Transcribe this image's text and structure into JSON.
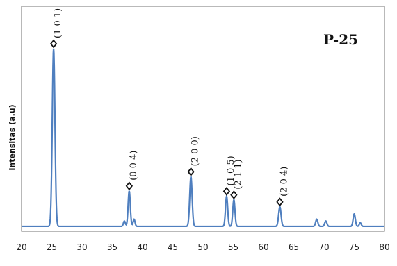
{
  "chart_data": {
    "type": "line",
    "title": "",
    "annotation": "P-25",
    "xlabel": "",
    "ylabel": "Intensitas (a.u)",
    "xlim": [
      20,
      80
    ],
    "ylim": [
      0,
      100
    ],
    "xticks": [
      20,
      25,
      30,
      35,
      40,
      45,
      50,
      55,
      60,
      65,
      70,
      75,
      80
    ],
    "tick_labels": [
      "20",
      "25",
      "30",
      "35",
      "40",
      "45",
      "50",
      "55",
      "60",
      "65",
      "70",
      "75",
      "80"
    ],
    "series_color": "#4f7fbf",
    "marker_symbol": "diamond",
    "peaks": [
      {
        "x": 25.3,
        "y": 100,
        "width": 0.22
      },
      {
        "x": 37.0,
        "y": 3,
        "width": 0.16
      },
      {
        "x": 37.8,
        "y": 20,
        "width": 0.18
      },
      {
        "x": 38.6,
        "y": 4,
        "width": 0.16
      },
      {
        "x": 48.0,
        "y": 28,
        "width": 0.2
      },
      {
        "x": 53.9,
        "y": 17,
        "width": 0.18
      },
      {
        "x": 55.1,
        "y": 15,
        "width": 0.18
      },
      {
        "x": 62.7,
        "y": 11,
        "width": 0.2
      },
      {
        "x": 68.8,
        "y": 4,
        "width": 0.18
      },
      {
        "x": 70.3,
        "y": 3,
        "width": 0.18
      },
      {
        "x": 75.0,
        "y": 7,
        "width": 0.18
      },
      {
        "x": 76.0,
        "y": 2,
        "width": 0.16
      }
    ],
    "annotations": [
      {
        "x": 25.3,
        "y": 100,
        "label": "(1 0 1)"
      },
      {
        "x": 37.8,
        "y": 20,
        "label": "(0 0 4)"
      },
      {
        "x": 48.0,
        "y": 28,
        "label": "(2 0 0)"
      },
      {
        "x": 53.9,
        "y": 17,
        "label": "(1 0 5)"
      },
      {
        "x": 55.1,
        "y": 15,
        "label": "(2 1 1)"
      },
      {
        "x": 62.7,
        "y": 11,
        "label": "(2 0 4)"
      }
    ]
  }
}
